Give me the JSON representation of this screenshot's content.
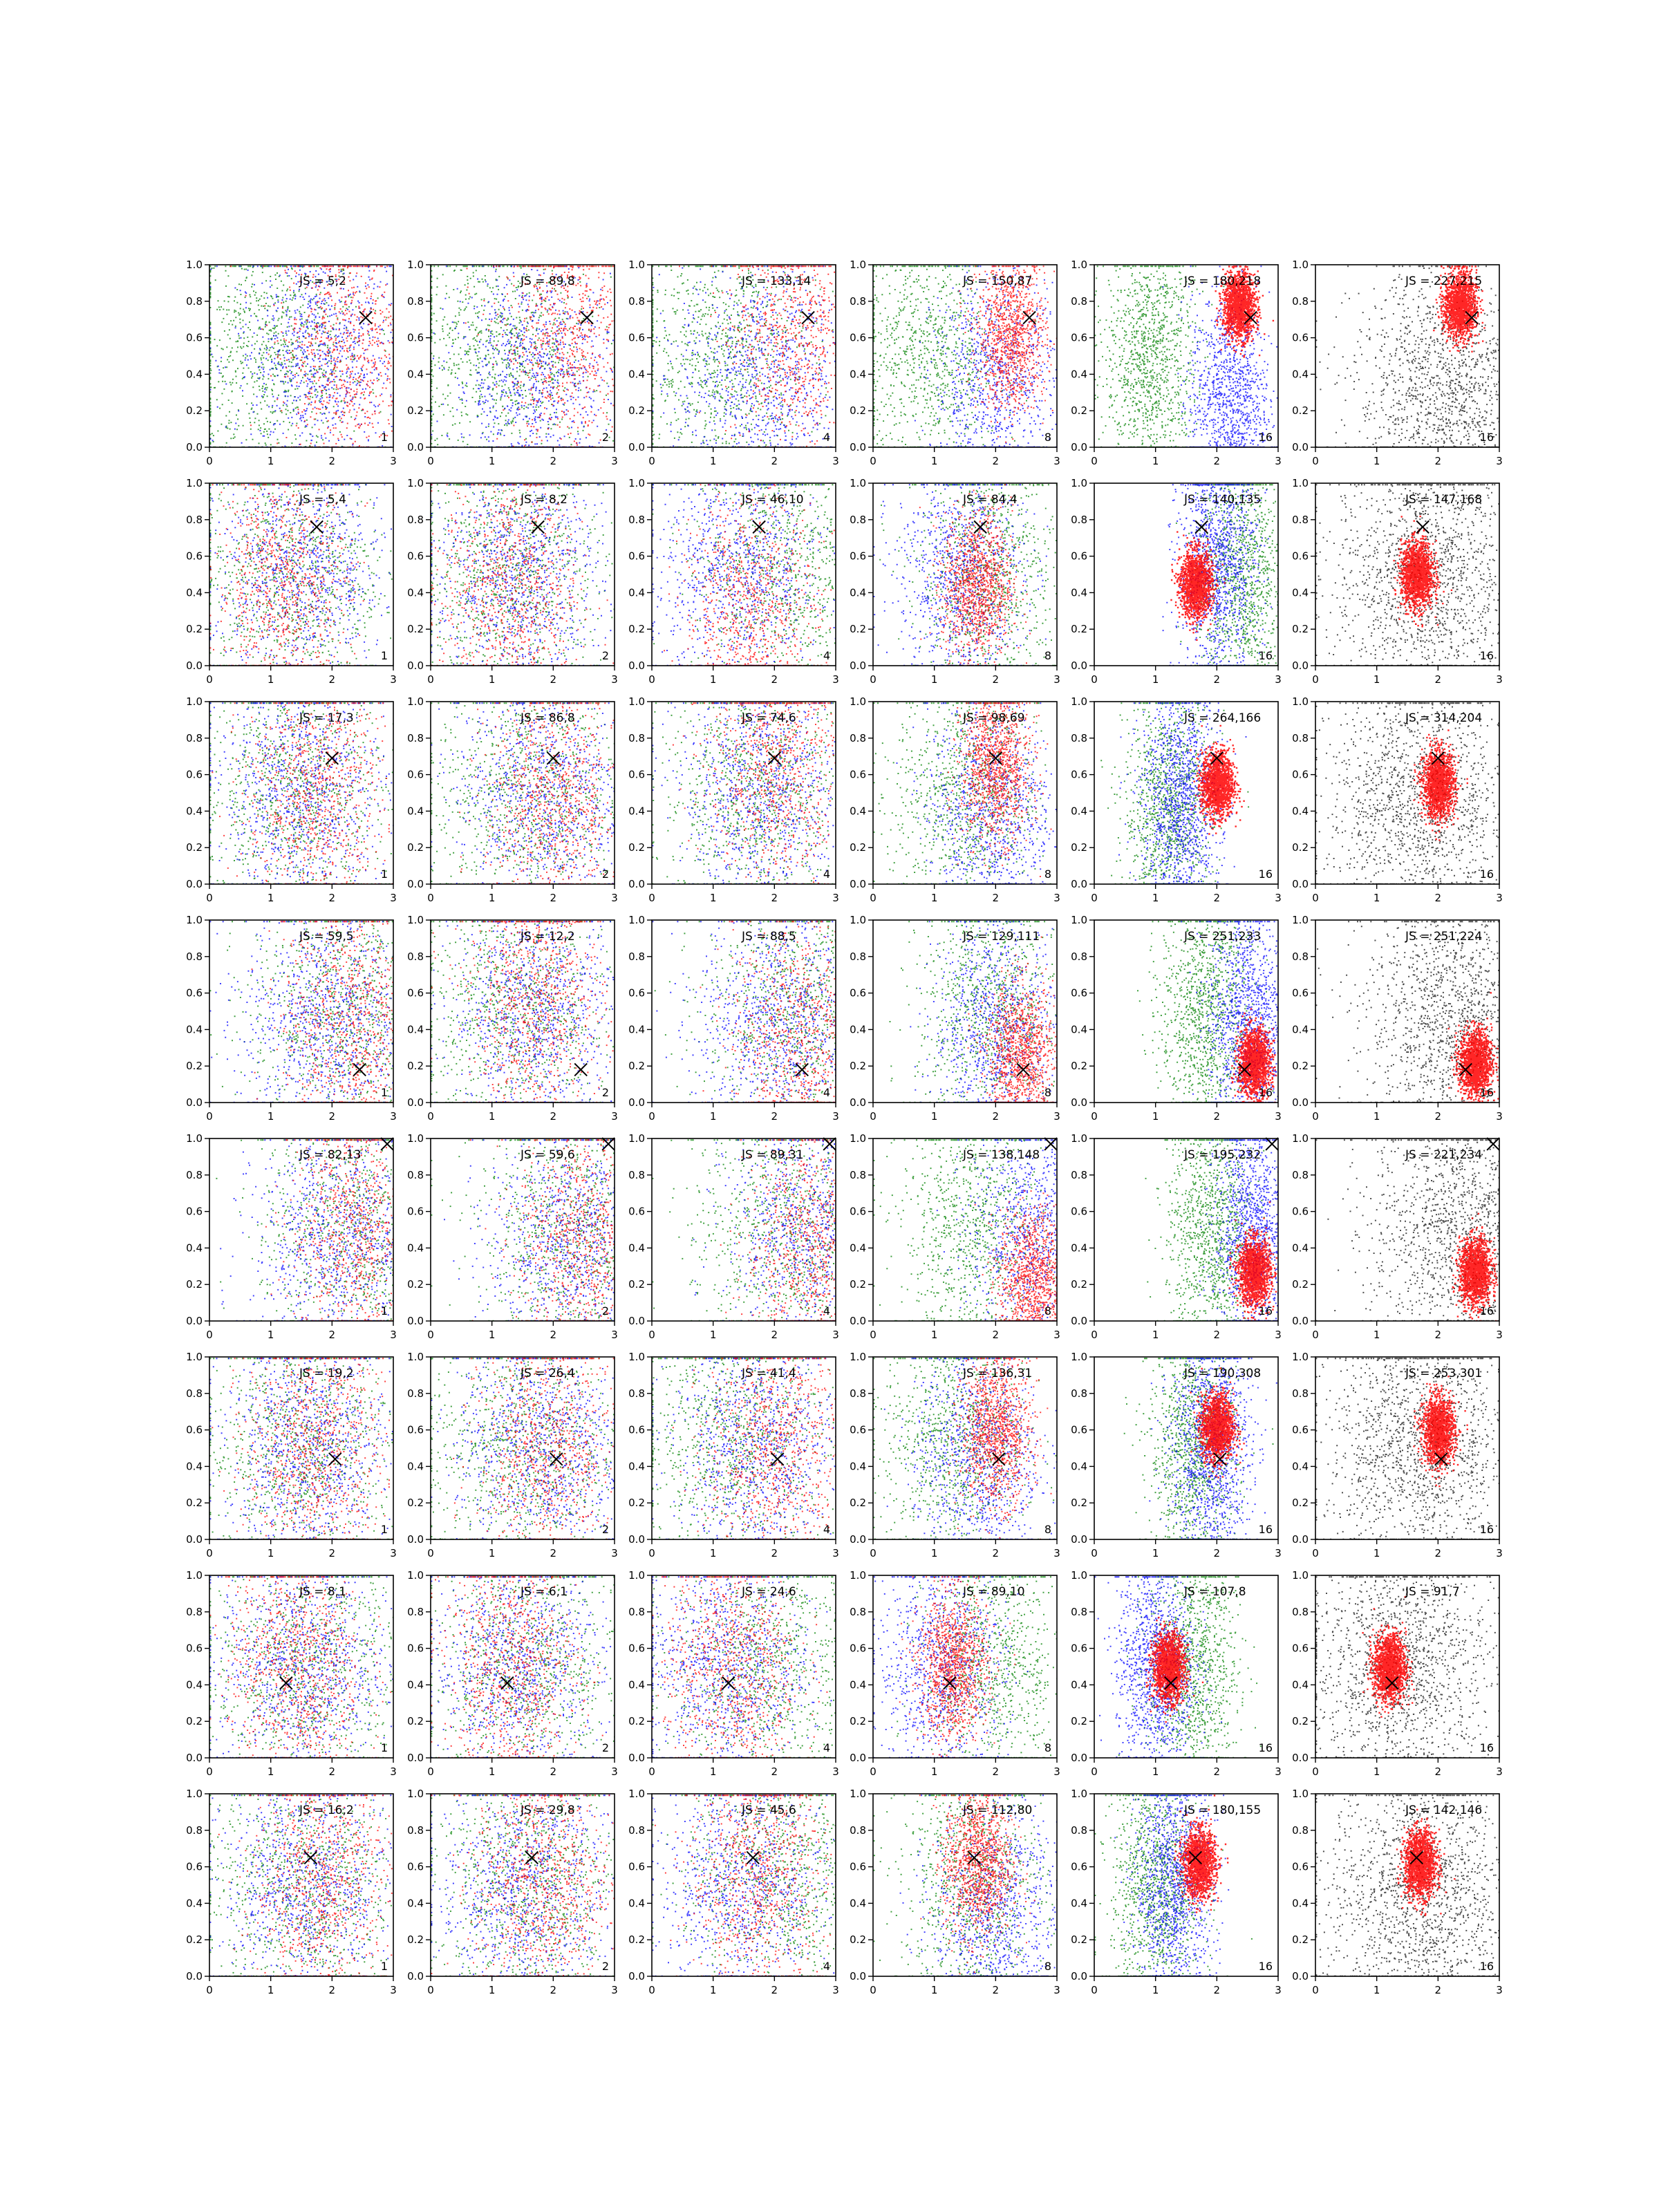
{
  "figure": {
    "layout": {
      "rows": 8,
      "cols": 6
    },
    "colors": {
      "red": "#ff0000",
      "blue": "#0000ff",
      "green": "#008000",
      "black": "#000000"
    },
    "marker_icon": "x-marker-icon"
  },
  "chart_data": {
    "type": "scatter",
    "grid": false,
    "legend": "none",
    "xlim": [
      0,
      3
    ],
    "ylim": [
      0,
      1
    ],
    "xticks": [
      "0",
      "1",
      "2",
      "3"
    ],
    "yticks": [
      "0.0",
      "0.2",
      "0.4",
      "0.6",
      "0.8",
      "1.0"
    ],
    "panel_count_labels": [
      "1",
      "2",
      "4",
      "8",
      "16",
      "16"
    ],
    "rows": [
      {
        "marker": [
          2.55,
          0.71
        ],
        "annotations": [
          "JS = 5,2",
          "JS = 89,8",
          "JS = 133,14",
          "JS = 150,87",
          "JS = 180,218",
          "JS = 227,215"
        ],
        "red_focus": [
          [
            2.2,
            0.55
          ],
          [
            2.25,
            0.6
          ],
          [
            2.3,
            0.62
          ],
          [
            2.25,
            0.62
          ],
          [
            2.35,
            0.78
          ],
          [
            2.35,
            0.78
          ]
        ],
        "blue_focus": [
          [
            1.8,
            0.5
          ],
          [
            1.7,
            0.4
          ],
          [
            1.8,
            0.4
          ],
          [
            2.0,
            0.35
          ],
          [
            2.2,
            0.25
          ],
          [
            2.1,
            0.3
          ]
        ],
        "green_focus": [
          [
            1.0,
            0.5
          ],
          [
            1.1,
            0.5
          ],
          [
            1.1,
            0.5
          ],
          [
            0.9,
            0.5
          ],
          [
            0.9,
            0.5
          ],
          [
            1.0,
            0.5
          ]
        ]
      },
      {
        "marker": [
          1.75,
          0.76
        ],
        "annotations": [
          "JS = 5,4",
          "JS = 8,2",
          "JS = 46,10",
          "JS = 84,4",
          "JS = 140,135",
          "JS = 147,168"
        ],
        "red_focus": [
          [
            1.2,
            0.45
          ],
          [
            1.3,
            0.45
          ],
          [
            1.6,
            0.3
          ],
          [
            1.7,
            0.45
          ],
          [
            1.65,
            0.45
          ],
          [
            1.65,
            0.5
          ]
        ],
        "blue_focus": [
          [
            1.5,
            0.5
          ],
          [
            1.4,
            0.5
          ],
          [
            1.4,
            0.5
          ],
          [
            1.4,
            0.5
          ],
          [
            2.0,
            0.55
          ],
          [
            1.8,
            0.5
          ]
        ],
        "green_focus": [
          [
            1.3,
            0.5
          ],
          [
            1.3,
            0.5
          ],
          [
            2.2,
            0.55
          ],
          [
            1.9,
            0.5
          ],
          [
            2.4,
            0.5
          ],
          [
            1.8,
            0.5
          ]
        ]
      },
      {
        "marker": [
          2.0,
          0.69
        ],
        "annotations": [
          "JS = 17,3",
          "JS = 86,8",
          "JS = 74,6",
          "JS = 98,69",
          "JS = 264,166",
          "JS = 314,204"
        ],
        "red_focus": [
          [
            1.7,
            0.5
          ],
          [
            2.0,
            0.45
          ],
          [
            2.0,
            0.65
          ],
          [
            2.0,
            0.65
          ],
          [
            2.0,
            0.55
          ],
          [
            2.0,
            0.55
          ]
        ],
        "blue_focus": [
          [
            1.5,
            0.5
          ],
          [
            1.8,
            0.5
          ],
          [
            1.8,
            0.5
          ],
          [
            1.9,
            0.4
          ],
          [
            1.4,
            0.45
          ],
          [
            1.7,
            0.45
          ]
        ],
        "green_focus": [
          [
            1.4,
            0.5
          ],
          [
            1.6,
            0.5
          ],
          [
            1.7,
            0.5
          ],
          [
            1.5,
            0.5
          ],
          [
            1.2,
            0.4
          ],
          [
            1.5,
            0.45
          ]
        ]
      },
      {
        "marker": [
          2.45,
          0.18
        ],
        "annotations": [
          "JS = 59,5",
          "JS = 12,2",
          "JS = 88,5",
          "JS = 129,111",
          "JS = 251,233",
          "JS = 251,224"
        ],
        "red_focus": [
          [
            2.3,
            0.45
          ],
          [
            1.7,
            0.55
          ],
          [
            2.4,
            0.35
          ],
          [
            2.4,
            0.25
          ],
          [
            2.6,
            0.22
          ],
          [
            2.6,
            0.22
          ]
        ],
        "blue_focus": [
          [
            1.9,
            0.45
          ],
          [
            1.7,
            0.5
          ],
          [
            2.1,
            0.45
          ],
          [
            2.0,
            0.4
          ],
          [
            2.5,
            0.45
          ],
          [
            2.3,
            0.45
          ]
        ],
        "green_focus": [
          [
            2.2,
            0.5
          ],
          [
            1.4,
            0.5
          ],
          [
            2.4,
            0.5
          ],
          [
            1.9,
            0.5
          ],
          [
            1.8,
            0.5
          ],
          [
            2.1,
            0.5
          ]
        ]
      },
      {
        "marker": [
          2.9,
          0.97
        ],
        "annotations": [
          "JS = 82,13",
          "JS = 59,6",
          "JS = 89,31",
          "JS = 138,148",
          "JS = 195,232",
          "JS = 221,234"
        ],
        "red_focus": [
          [
            2.4,
            0.5
          ],
          [
            2.5,
            0.45
          ],
          [
            2.6,
            0.4
          ],
          [
            2.6,
            0.22
          ],
          [
            2.6,
            0.27
          ],
          [
            2.6,
            0.27
          ]
        ],
        "blue_focus": [
          [
            2.1,
            0.45
          ],
          [
            2.3,
            0.45
          ],
          [
            2.6,
            0.5
          ],
          [
            2.6,
            0.5
          ],
          [
            2.6,
            0.5
          ],
          [
            2.4,
            0.5
          ]
        ],
        "green_focus": [
          [
            2.4,
            0.5
          ],
          [
            2.3,
            0.5
          ],
          [
            2.2,
            0.5
          ],
          [
            1.6,
            0.5
          ],
          [
            1.9,
            0.5
          ],
          [
            2.2,
            0.5
          ]
        ]
      },
      {
        "marker": [
          2.05,
          0.44
        ],
        "annotations": [
          "JS = 19,2",
          "JS = 26,4",
          "JS = 41,4",
          "JS = 136,31",
          "JS = 190,308",
          "JS = 253,301"
        ],
        "red_focus": [
          [
            1.7,
            0.5
          ],
          [
            1.9,
            0.5
          ],
          [
            2.0,
            0.5
          ],
          [
            2.0,
            0.6
          ],
          [
            2.0,
            0.62
          ],
          [
            2.0,
            0.6
          ]
        ],
        "blue_focus": [
          [
            1.6,
            0.5
          ],
          [
            1.8,
            0.5
          ],
          [
            1.7,
            0.5
          ],
          [
            1.7,
            0.45
          ],
          [
            1.9,
            0.5
          ],
          [
            1.7,
            0.5
          ]
        ],
        "green_focus": [
          [
            1.5,
            0.5
          ],
          [
            1.5,
            0.5
          ],
          [
            1.3,
            0.55
          ],
          [
            1.3,
            0.55
          ],
          [
            1.6,
            0.5
          ],
          [
            1.6,
            0.5
          ]
        ]
      },
      {
        "marker": [
          1.25,
          0.41
        ],
        "annotations": [
          "JS = 8,1",
          "JS = 6,1",
          "JS = 24,6",
          "JS = 89,10",
          "JS = 107,8",
          "JS = 91,7"
        ],
        "red_focus": [
          [
            1.4,
            0.5
          ],
          [
            1.3,
            0.5
          ],
          [
            1.3,
            0.5
          ],
          [
            1.3,
            0.5
          ],
          [
            1.2,
            0.5
          ],
          [
            1.2,
            0.5
          ]
        ],
        "blue_focus": [
          [
            1.5,
            0.5
          ],
          [
            1.4,
            0.5
          ],
          [
            1.2,
            0.5
          ],
          [
            1.1,
            0.5
          ],
          [
            1.0,
            0.5
          ],
          [
            1.4,
            0.5
          ]
        ],
        "green_focus": [
          [
            1.6,
            0.5
          ],
          [
            1.6,
            0.5
          ],
          [
            1.9,
            0.5
          ],
          [
            2.0,
            0.5
          ],
          [
            1.6,
            0.5
          ],
          [
            1.6,
            0.5
          ]
        ]
      },
      {
        "marker": [
          1.65,
          0.65
        ],
        "annotations": [
          "JS = 16,2",
          "JS = 29,8",
          "JS = 45,6",
          "JS = 112,80",
          "JS = 180,155",
          "JS = 142,146"
        ],
        "red_focus": [
          [
            1.8,
            0.5
          ],
          [
            1.8,
            0.5
          ],
          [
            1.7,
            0.55
          ],
          [
            1.7,
            0.62
          ],
          [
            1.7,
            0.62
          ],
          [
            1.7,
            0.62
          ]
        ],
        "blue_focus": [
          [
            1.6,
            0.5
          ],
          [
            1.5,
            0.5
          ],
          [
            1.5,
            0.5
          ],
          [
            2.0,
            0.35
          ],
          [
            1.3,
            0.5
          ],
          [
            1.7,
            0.45
          ]
        ],
        "green_focus": [
          [
            1.5,
            0.5
          ],
          [
            1.6,
            0.5
          ],
          [
            2.1,
            0.55
          ],
          [
            1.6,
            0.5
          ],
          [
            1.0,
            0.5
          ],
          [
            1.6,
            0.5
          ]
        ]
      }
    ]
  }
}
